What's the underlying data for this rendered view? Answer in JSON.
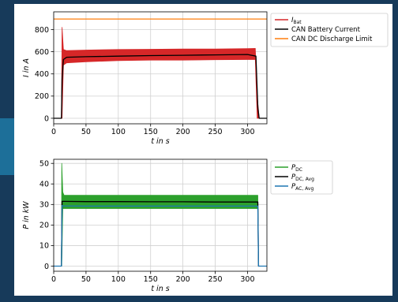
{
  "colors": {
    "frame_bg": "#173a5a",
    "accent": "#1d6f99",
    "ibat": "#d62728",
    "black": "#000000",
    "orange": "#ff7f0e",
    "green": "#2ca02c",
    "blue": "#1f77b4"
  },
  "chart_data": [
    {
      "type": "line",
      "xlabel": "t in s",
      "ylabel": "I in A",
      "xlim": [
        0,
        330
      ],
      "ylim": [
        -50,
        960
      ],
      "xticks": [
        "0",
        "50",
        "100",
        "150",
        "200",
        "250",
        "300"
      ],
      "yticks": [
        "0",
        "200",
        "400",
        "600",
        "800"
      ],
      "grid": true,
      "legend_position": "top-right",
      "legend": [
        {
          "label": "I",
          "sub": "Bat",
          "color": "#d62728"
        },
        {
          "label": "CAN Battery Current",
          "sub": "",
          "color": "#000000"
        },
        {
          "label": "CAN DC Discharge Limit",
          "sub": "",
          "color": "#ff7f0e"
        }
      ],
      "series": [
        {
          "name": "I_Bat",
          "color": "#d62728",
          "kind": "band",
          "x": [
            12,
            13,
            15,
            20,
            50,
            100,
            150,
            200,
            250,
            300,
            312,
            315,
            318,
            325
          ],
          "upper": [
            0,
            820,
            620,
            610,
            615,
            620,
            622,
            625,
            625,
            628,
            630,
            200,
            0,
            0
          ],
          "lower": [
            0,
            0,
            480,
            500,
            510,
            520,
            525,
            525,
            528,
            530,
            530,
            0,
            0,
            0
          ]
        },
        {
          "name": "CAN Battery Current",
          "color": "#000000",
          "x": [
            0,
            12,
            13,
            15,
            20,
            50,
            100,
            150,
            200,
            250,
            300,
            313,
            316,
            318,
            330
          ],
          "y": [
            0,
            0,
            350,
            530,
            550,
            555,
            560,
            565,
            568,
            572,
            575,
            560,
            100,
            0,
            0
          ]
        },
        {
          "name": "CAN DC Discharge Limit",
          "color": "#ff7f0e",
          "x": [
            0,
            330
          ],
          "y": [
            895,
            895
          ]
        }
      ]
    },
    {
      "type": "line",
      "xlabel": "t in s",
      "ylabel": "P in kW",
      "xlim": [
        0,
        330
      ],
      "ylim": [
        -2.5,
        52
      ],
      "xticks": [
        "0",
        "50",
        "100",
        "150",
        "200",
        "250",
        "300"
      ],
      "yticks": [
        "0",
        "10",
        "20",
        "30",
        "40",
        "50"
      ],
      "grid": true,
      "legend_position": "top-right",
      "legend": [
        {
          "label": "P",
          "sub": "DC",
          "color": "#2ca02c"
        },
        {
          "label": "P",
          "sub": "DC, Avg",
          "color": "#000000"
        },
        {
          "label": "P",
          "sub": "AC, Avg",
          "color": "#1f77b4"
        }
      ],
      "series": [
        {
          "name": "P_DC",
          "color": "#2ca02c",
          "kind": "band",
          "x": [
            12,
            12.5,
            14,
            16,
            50,
            100,
            150,
            200,
            250,
            300,
            316,
            317,
            318
          ],
          "upper": [
            0,
            50,
            36,
            34.5,
            34.5,
            34.5,
            34.5,
            34.5,
            34.5,
            34.5,
            34.5,
            0,
            0
          ],
          "lower": [
            0,
            0,
            28,
            28,
            28,
            28,
            28,
            28,
            28,
            28,
            28,
            0,
            0
          ]
        },
        {
          "name": "P_DC,Avg",
          "color": "#000000",
          "x": [
            12,
            13,
            15,
            50,
            100,
            150,
            200,
            250,
            300,
            316,
            317,
            318
          ],
          "y": [
            0,
            31.5,
            31.5,
            31.4,
            31.4,
            31.3,
            31.3,
            31.2,
            31.2,
            31.2,
            0,
            0
          ]
        },
        {
          "name": "P_AC,Avg",
          "color": "#1f77b4",
          "x": [
            0,
            12,
            13,
            15,
            50,
            100,
            150,
            200,
            250,
            300,
            316,
            317,
            330
          ],
          "y": [
            0,
            0,
            29.5,
            29.3,
            29.2,
            29.2,
            29.2,
            29.2,
            29.2,
            29.2,
            29.2,
            0,
            0
          ]
        }
      ]
    }
  ]
}
